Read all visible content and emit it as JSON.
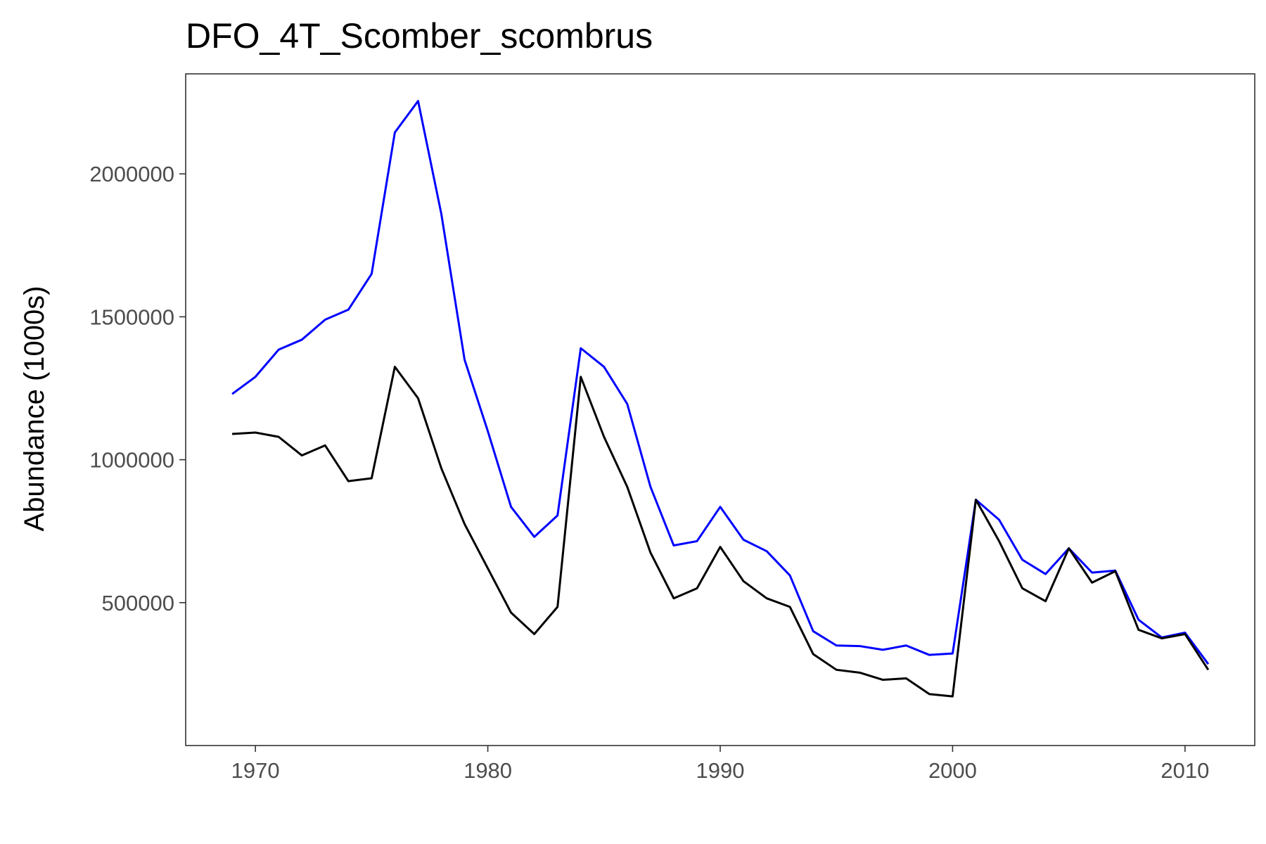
{
  "chart_data": {
    "type": "line",
    "title": "DFO_4T_Scomber_scombrus",
    "xlabel": "",
    "ylabel": "Abundance (1000s)",
    "xlim": [
      1967,
      2013
    ],
    "ylim": [
      0,
      2350000
    ],
    "xticks": [
      1970,
      1980,
      1990,
      2000,
      2010
    ],
    "yticks": [
      500000,
      1000000,
      1500000,
      2000000
    ],
    "grid": false,
    "legend": "none",
    "x": [
      1969,
      1970,
      1971,
      1972,
      1973,
      1974,
      1975,
      1976,
      1977,
      1978,
      1979,
      1980,
      1981,
      1982,
      1983,
      1984,
      1985,
      1986,
      1987,
      1988,
      1989,
      1990,
      1991,
      1992,
      1993,
      1994,
      1995,
      1996,
      1997,
      1998,
      1999,
      2000,
      2001,
      2002,
      2003,
      2004,
      2005,
      2006,
      2007,
      2008,
      2009,
      2010,
      2011
    ],
    "series": [
      {
        "color": "#0000ff",
        "values": [
          1230000,
          1290000,
          1385000,
          1420000,
          1490000,
          1525000,
          1650000,
          2145000,
          2255000,
          1860000,
          1350000,
          1100000,
          835000,
          730000,
          805000,
          1390000,
          1325000,
          1195000,
          905000,
          700000,
          715000,
          835000,
          720000,
          680000,
          595000,
          400000,
          350000,
          348000,
          335000,
          350000,
          317000,
          322000,
          860000,
          790000,
          650000,
          600000,
          690000,
          605000,
          612000,
          440000,
          378000,
          395000,
          285000
        ]
      },
      {
        "color": "#000000",
        "values": [
          1090000,
          1095000,
          1080000,
          1015000,
          1050000,
          925000,
          935000,
          1325000,
          1215000,
          970000,
          775000,
          620000,
          465000,
          390000,
          485000,
          1290000,
          1080000,
          905000,
          675000,
          515000,
          550000,
          695000,
          575000,
          515000,
          485000,
          320000,
          265000,
          255000,
          230000,
          235000,
          180000,
          172000,
          860000,
          715000,
          550000,
          505000,
          690000,
          570000,
          610000,
          405000,
          375000,
          390000,
          265000
        ]
      }
    ]
  }
}
